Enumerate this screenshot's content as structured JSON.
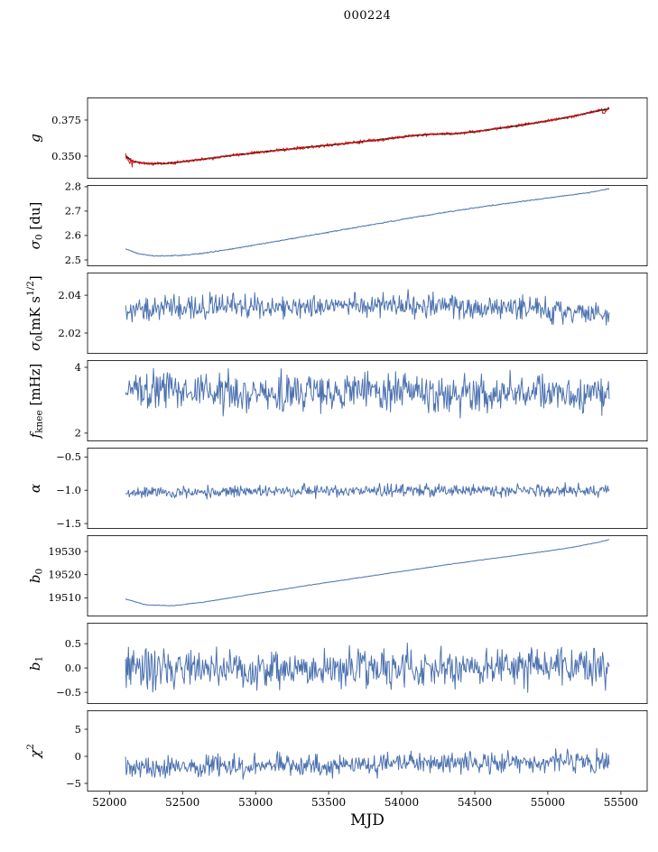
{
  "title": "000224",
  "xlabel": "MJD",
  "axis": {
    "xlim": [
      51850,
      55680
    ],
    "xticks": [
      52000,
      52500,
      53000,
      53500,
      54000,
      54500,
      55000,
      55500
    ],
    "xtick_labels": [
      "52000",
      "52500",
      "53000",
      "53500",
      "54000",
      "54500",
      "55000",
      "55500"
    ],
    "x_range": [
      52110,
      55420
    ],
    "samples": 660,
    "frame_color": "#000000",
    "line_color": "#4c72b0",
    "model_color": "#1a1a1a",
    "data_color": "#de1414"
  },
  "chart_data": [
    {
      "id": "g",
      "type": "line",
      "ylabel": [
        {
          "t": "g",
          "i": true
        }
      ],
      "ylim": [
        0.3344,
        0.3906
      ],
      "ytick_values": [
        0.35,
        0.375
      ],
      "ytick_labels": [
        "0.350",
        "0.375"
      ],
      "series": [
        {
          "name": "model",
          "color": "#1a1a1a",
          "width": 1.6,
          "amp": 0.0003,
          "seed": 101,
          "trend": [
            [
              52110,
              0.3502
            ],
            [
              52160,
              0.3464
            ],
            [
              52260,
              0.3448
            ],
            [
              52400,
              0.345
            ],
            [
              52600,
              0.3474
            ],
            [
              52850,
              0.3507
            ],
            [
              53100,
              0.3535
            ],
            [
              53350,
              0.3561
            ],
            [
              53600,
              0.3586
            ],
            [
              53850,
              0.3614
            ],
            [
              54050,
              0.3639
            ],
            [
              54200,
              0.3652
            ],
            [
              54350,
              0.3655
            ],
            [
              54500,
              0.3669
            ],
            [
              54700,
              0.3697
            ],
            [
              54900,
              0.3727
            ],
            [
              55100,
              0.3762
            ],
            [
              55250,
              0.3793
            ],
            [
              55350,
              0.3815
            ],
            [
              55420,
              0.3828
            ]
          ]
        },
        {
          "name": "data",
          "color": "#de1414",
          "width": 1.0,
          "amp": 0.0011,
          "seed": 55,
          "burst": {
            "until": 52170,
            "amp": 0.0036
          },
          "trend": [
            [
              52110,
              0.3502
            ],
            [
              52160,
              0.3464
            ],
            [
              52260,
              0.3448
            ],
            [
              52400,
              0.345
            ],
            [
              52600,
              0.3474
            ],
            [
              52850,
              0.3507
            ],
            [
              53100,
              0.3535
            ],
            [
              53350,
              0.3561
            ],
            [
              53600,
              0.3586
            ],
            [
              53850,
              0.3614
            ],
            [
              54050,
              0.3639
            ],
            [
              54200,
              0.3652
            ],
            [
              54350,
              0.3655
            ],
            [
              54500,
              0.3669
            ],
            [
              54700,
              0.3697
            ],
            [
              54900,
              0.3727
            ],
            [
              55100,
              0.3762
            ],
            [
              55250,
              0.3793
            ],
            [
              55330,
              0.3812
            ],
            [
              55368,
              0.3825
            ],
            [
              55385,
              0.3786
            ],
            [
              55400,
              0.3824
            ],
            [
              55420,
              0.3834
            ]
          ]
        }
      ]
    },
    {
      "id": "sigma0-du",
      "type": "line",
      "ylabel": [
        {
          "t": "σ",
          "i": true
        },
        {
          "t": "0",
          "sub": true
        },
        {
          "t": " [du]"
        }
      ],
      "ylim": [
        2.474,
        2.807
      ],
      "ytick_values": [
        2.5,
        2.6,
        2.7,
        2.8
      ],
      "ytick_labels": [
        "2.5",
        "2.6",
        "2.7",
        "2.8"
      ],
      "series": [
        {
          "name": "sigma0-du",
          "color": "#4c72b0",
          "width": 1.0,
          "amp": 0.0022,
          "seed": 202,
          "trend": [
            [
              52110,
              2.546
            ],
            [
              52200,
              2.524
            ],
            [
              52330,
              2.5155
            ],
            [
              52480,
              2.518
            ],
            [
              52650,
              2.528
            ],
            [
              52850,
              2.546
            ],
            [
              53100,
              2.572
            ],
            [
              53350,
              2.598
            ],
            [
              53600,
              2.624
            ],
            [
              53850,
              2.65
            ],
            [
              54100,
              2.676
            ],
            [
              54350,
              2.7
            ],
            [
              54600,
              2.722
            ],
            [
              54850,
              2.742
            ],
            [
              55100,
              2.762
            ],
            [
              55300,
              2.778
            ],
            [
              55420,
              2.792
            ]
          ]
        }
      ]
    },
    {
      "id": "sigma0-mks",
      "type": "line",
      "ylabel": [
        {
          "t": "σ",
          "i": true
        },
        {
          "t": "0",
          "sub": true
        },
        {
          "t": "[mK s"
        },
        {
          "t": "1/2",
          "sup": true
        },
        {
          "t": "]"
        }
      ],
      "ylim": [
        2.009,
        2.052
      ],
      "ytick_values": [
        2.02,
        2.04
      ],
      "ytick_labels": [
        "2.02",
        "2.04"
      ],
      "series": [
        {
          "name": "sigma0-mks",
          "color": "#4c72b0",
          "width": 1.0,
          "amp": 0.006,
          "seed": 303,
          "trend": [
            [
              52110,
              2.031
            ],
            [
              52600,
              2.034
            ],
            [
              53200,
              2.0335
            ],
            [
              54000,
              2.035
            ],
            [
              54800,
              2.0335
            ],
            [
              55420,
              2.03
            ]
          ]
        }
      ]
    },
    {
      "id": "fknee",
      "type": "line",
      "ylabel": [
        {
          "t": "f",
          "i": true
        },
        {
          "t": "knee",
          "sub": true
        },
        {
          "t": " [mHz]"
        }
      ],
      "ylim": [
        1.75,
        4.22
      ],
      "ytick_values": [
        2,
        4
      ],
      "ytick_labels": [
        "2",
        "4"
      ],
      "series": [
        {
          "name": "fknee",
          "color": "#4c72b0",
          "width": 1.0,
          "amp": 0.55,
          "seed": 404,
          "trend": [
            [
              52110,
              3.3
            ],
            [
              53000,
              3.2
            ],
            [
              54000,
              3.25
            ],
            [
              55420,
              3.15
            ]
          ]
        }
      ]
    },
    {
      "id": "alpha",
      "type": "line",
      "ylabel": [
        {
          "t": "α",
          "i": true
        }
      ],
      "ylim": [
        -1.58,
        -0.36
      ],
      "ytick_values": [
        -1.5,
        -1.0,
        -0.5
      ],
      "ytick_labels": [
        "−1.5",
        "−1.0",
        "−0.5"
      ],
      "series": [
        {
          "name": "alpha",
          "color": "#4c72b0",
          "width": 1.0,
          "amp": 0.09,
          "seed": 505,
          "trend": [
            [
              52110,
              -1.04
            ],
            [
              53000,
              -1.02
            ],
            [
              54000,
              -1.01
            ],
            [
              55420,
              -1.0
            ]
          ]
        }
      ]
    },
    {
      "id": "b0",
      "type": "line",
      "ylabel": [
        {
          "t": "b",
          "i": true
        },
        {
          "t": "0",
          "sub": true
        }
      ],
      "ylim": [
        19502,
        19537
      ],
      "ytick_values": [
        19510,
        19520,
        19530
      ],
      "ytick_labels": [
        "19510",
        "19520",
        "19530"
      ],
      "series": [
        {
          "name": "b0",
          "color": "#4c72b0",
          "width": 1.0,
          "amp": 0.12,
          "seed": 606,
          "trend": [
            [
              52110,
              19509.5
            ],
            [
              52250,
              19507.0
            ],
            [
              52430,
              19506.6
            ],
            [
              52650,
              19508.2
            ],
            [
              52900,
              19510.8
            ],
            [
              53150,
              19513.3
            ],
            [
              53400,
              19515.8
            ],
            [
              53700,
              19518.6
            ],
            [
              54000,
              19521.4
            ],
            [
              54300,
              19524.2
            ],
            [
              54600,
              19526.8
            ],
            [
              54900,
              19529.3
            ],
            [
              55150,
              19531.6
            ],
            [
              55350,
              19534.0
            ],
            [
              55420,
              19535.2
            ]
          ]
        }
      ]
    },
    {
      "id": "b1",
      "type": "line",
      "ylabel": [
        {
          "t": "b",
          "i": true
        },
        {
          "t": "1",
          "sub": true
        }
      ],
      "ylim": [
        -0.74,
        0.93
      ],
      "ytick_values": [
        -0.5,
        0.0,
        0.5
      ],
      "ytick_labels": [
        "−0.5",
        "0.0",
        "0.5"
      ],
      "series": [
        {
          "name": "b1",
          "color": "#4c72b0",
          "width": 1.0,
          "amp": 0.4,
          "seed": 707,
          "trend": [
            [
              52110,
              0.0
            ],
            [
              55420,
              0.02
            ]
          ]
        }
      ]
    },
    {
      "id": "chi2",
      "type": "line",
      "ylabel": [
        {
          "t": "χ",
          "i": true
        },
        {
          "t": "2",
          "sup": true
        }
      ],
      "ylim": [
        -6.5,
        8.5
      ],
      "ytick_values": [
        -5,
        0,
        5
      ],
      "ytick_labels": [
        "−5",
        "0",
        "5"
      ],
      "series": [
        {
          "name": "chi2",
          "color": "#4c72b0",
          "width": 1.0,
          "amp": 1.9,
          "seed": 808,
          "trend": [
            [
              52110,
              -1.9
            ],
            [
              53200,
              -1.7
            ],
            [
              54200,
              -1.2
            ],
            [
              55420,
              -0.9
            ]
          ]
        }
      ]
    }
  ]
}
